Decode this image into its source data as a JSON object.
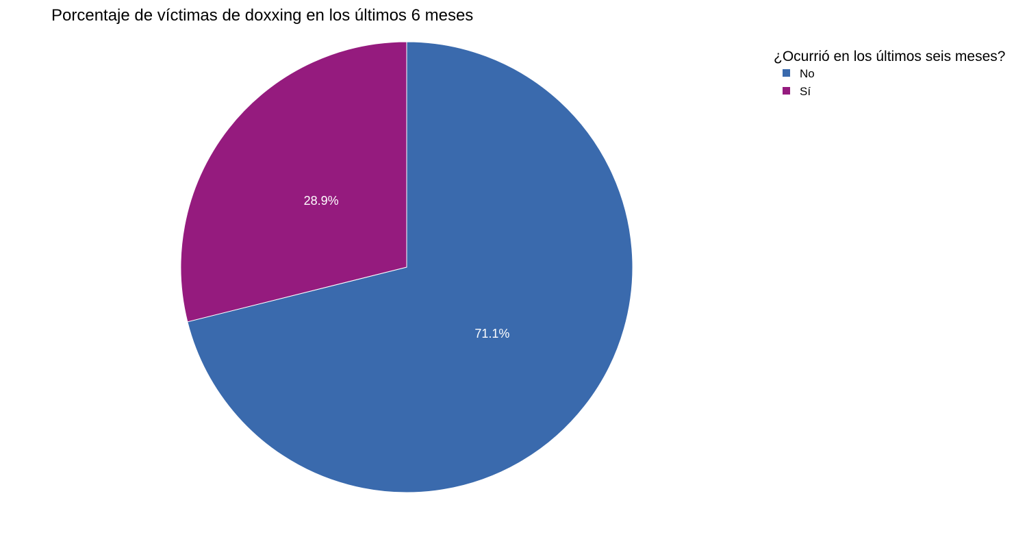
{
  "chart_data": {
    "type": "pie",
    "title": "Porcentaje de víctimas de doxxing en los últimos 6 meses",
    "legend_title": "¿Ocurrió en los últimos seis meses?",
    "legend_position": "top-right",
    "slices": [
      {
        "name": "No",
        "value": 71.1,
        "label": "71.1%",
        "color": "#3A6AAD"
      },
      {
        "name": "Sí",
        "value": 28.9,
        "label": "28.9%",
        "color": "#951B7E"
      }
    ]
  }
}
